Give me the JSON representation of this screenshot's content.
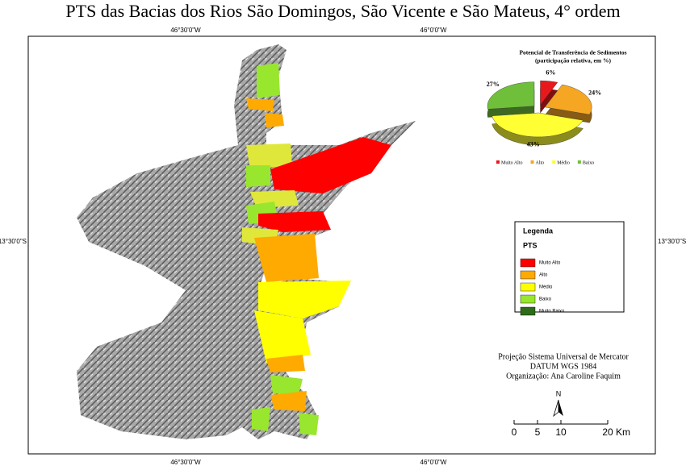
{
  "title": "PTS das Bacias dos Rios São Domingos, São Vicente e São Mateus, 4° ordem",
  "graticule": {
    "top": [
      "46°30'0\"W",
      "46°0'0\"W"
    ],
    "bottom": [
      "46°30'0\"W",
      "46°0'0\"W"
    ],
    "left": "13°30'0\"S",
    "right": "13°30'0\"S"
  },
  "chart_data": {
    "type": "pie",
    "title": "Potencial de Transferência de Sedimentos",
    "subtitle": "(participação relativa, em %)",
    "categories": [
      "Muito Alto",
      "Alto",
      "Médio",
      "Baixo"
    ],
    "values": [
      6,
      24,
      43,
      27
    ],
    "value_labels": [
      "6%",
      "24%",
      "43%",
      "27%"
    ],
    "colors": [
      "#e8191c",
      "#f5a623",
      "#ffff33",
      "#6fbf3a"
    ]
  },
  "legend": {
    "title": "Legenda",
    "subtitle": "PTS",
    "items": [
      {
        "label": "Muito Alto",
        "color": "#ff0000"
      },
      {
        "label": "Alto",
        "color": "#ffaa00"
      },
      {
        "label": "Médio",
        "color": "#ffff00"
      },
      {
        "label": "Baixo",
        "color": "#99e62e"
      },
      {
        "label": "Muito Baixo",
        "color": "#2e6b1a"
      }
    ]
  },
  "credits": [
    "Projeção Sistema Universal de Mercator",
    "DATUM WGS 1984",
    "Organização: Ana Caroline Faquim"
  ],
  "north": "N",
  "scale_bar": {
    "ticks": [
      0,
      5,
      10,
      20
    ],
    "unit": "Km"
  }
}
